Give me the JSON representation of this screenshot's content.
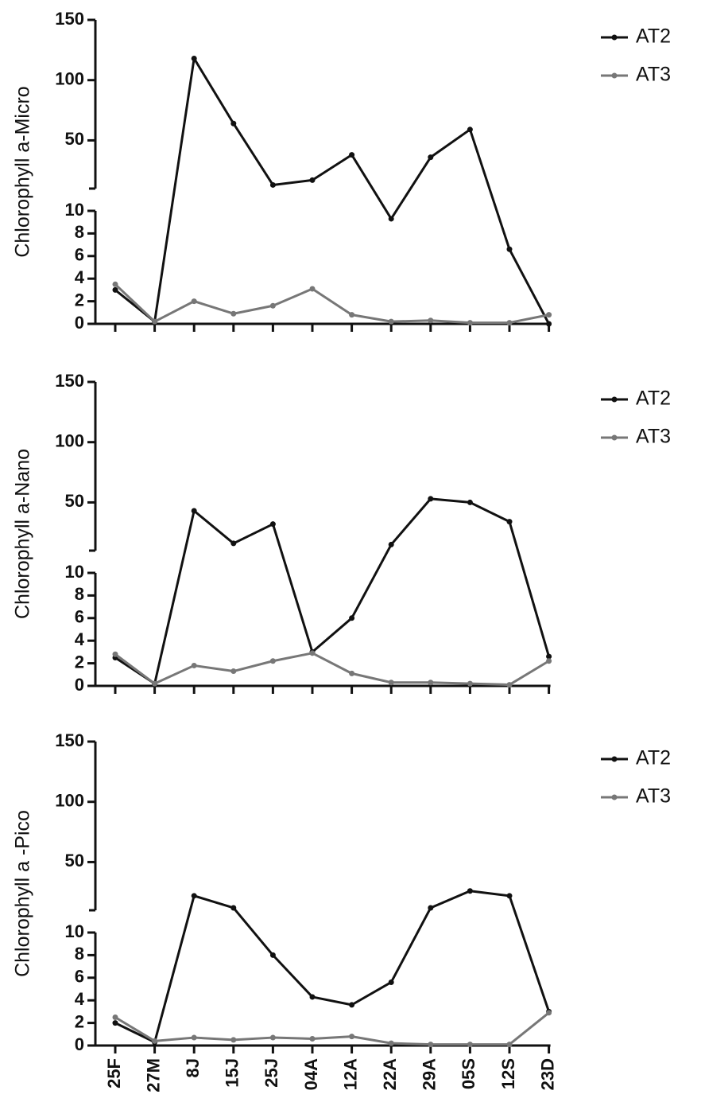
{
  "chart_data": [
    {
      "type": "line",
      "y_label": "Chlorophyll a-Micro",
      "legend": "right",
      "categories": [
        null,
        null,
        null,
        null,
        null,
        null,
        null,
        null,
        null,
        null,
        null,
        null
      ],
      "series": [
        {
          "name": "AT2",
          "color": "#111111",
          "values": [
            3.0,
            0.2,
            118,
            64,
            13,
            17,
            38,
            9.3,
            36,
            59,
            6.6,
            0
          ]
        },
        {
          "name": "AT3",
          "color": "#777777",
          "values": [
            3.5,
            0.2,
            2.0,
            0.9,
            1.6,
            3.1,
            0.8,
            0.2,
            0.3,
            0.1,
            0.1,
            0.8
          ]
        }
      ],
      "ylim": [
        0,
        150
      ],
      "y_break": 10,
      "yticks": [
        0,
        2,
        4,
        6,
        8,
        10,
        50,
        100,
        150
      ]
    },
    {
      "type": "line",
      "y_label": "Chlorophyll a-Nano",
      "legend": "right",
      "categories": [
        null,
        null,
        null,
        null,
        null,
        null,
        null,
        null,
        null,
        null,
        null,
        null
      ],
      "series": [
        {
          "name": "AT2",
          "color": "#111111",
          "values": [
            2.5,
            0.2,
            43,
            16,
            32,
            3.0,
            6.0,
            15,
            53,
            50,
            34,
            2.6
          ]
        },
        {
          "name": "AT3",
          "color": "#777777",
          "values": [
            2.8,
            0.2,
            1.8,
            1.3,
            2.2,
            2.9,
            1.1,
            0.3,
            0.3,
            0.2,
            0.1,
            2.2
          ]
        }
      ],
      "ylim": [
        0,
        150
      ],
      "y_break": 10,
      "yticks": [
        0,
        2,
        4,
        6,
        8,
        10,
        50,
        100,
        150
      ]
    },
    {
      "type": "line",
      "y_label": "Chlorophyll a -Pico",
      "legend": "right",
      "categories": [
        "25F",
        "27M",
        "8J",
        "15J",
        "25J",
        "04A",
        "12A",
        "22A",
        "29A",
        "05S",
        "12S",
        "23D"
      ],
      "series": [
        {
          "name": "AT2",
          "color": "#111111",
          "values": [
            2.0,
            0.3,
            22,
            12,
            8.0,
            4.3,
            3.6,
            5.6,
            12,
            26,
            22,
            3.0
          ]
        },
        {
          "name": "AT3",
          "color": "#777777",
          "values": [
            2.5,
            0.4,
            0.7,
            0.5,
            0.7,
            0.6,
            0.8,
            0.2,
            0.1,
            0.1,
            0.1,
            2.9
          ]
        }
      ],
      "ylim": [
        0,
        150
      ],
      "y_break": 10,
      "yticks": [
        0,
        2,
        4,
        6,
        8,
        10,
        50,
        100,
        150
      ]
    }
  ]
}
